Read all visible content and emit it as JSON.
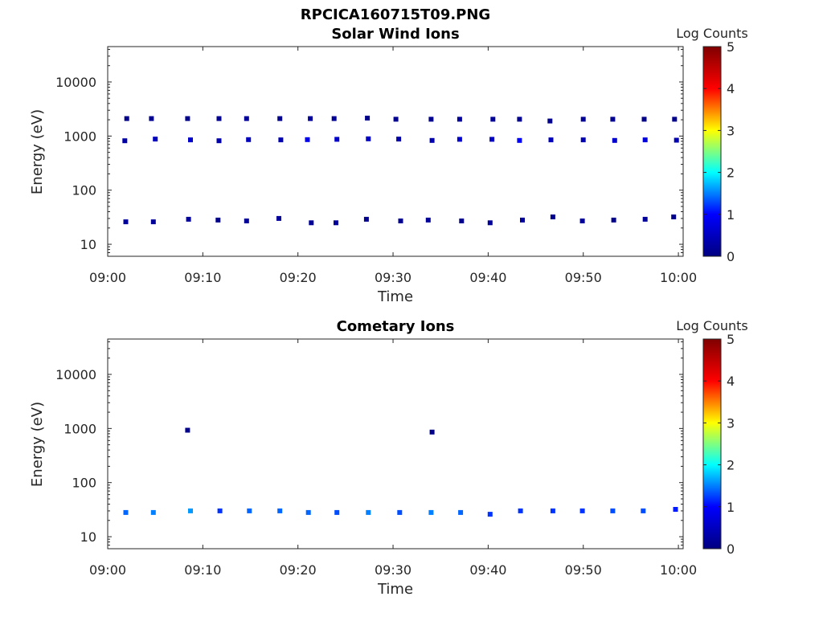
{
  "figure_title": "RPCICA160715T09.PNG",
  "colormap": [
    "#000080",
    "#0000ff",
    "#00ffff",
    "#ffff00",
    "#ff0000",
    "#800000"
  ],
  "chart_data": [
    {
      "type": "heatmap",
      "title": "Solar Wind Ions",
      "xlabel": "Time",
      "ylabel": "Energy (eV)",
      "x_ticks": [
        "09:00",
        "09:10",
        "09:20",
        "09:30",
        "09:40",
        "09:50",
        "10:00"
      ],
      "xlim_minutes": [
        0,
        60.5
      ],
      "y_scale": "log",
      "ylim": [
        6,
        45000
      ],
      "y_ticks": [
        10,
        100,
        1000,
        10000
      ],
      "y_tick_labels": [
        "10",
        "100",
        "1000",
        "10000"
      ],
      "colorbar": {
        "label": "Log Counts",
        "range": [
          0,
          5
        ],
        "ticks": [
          "0",
          "1",
          "2",
          "3",
          "4",
          "5"
        ]
      },
      "z_units": "log10 counts",
      "cells": [
        [
          2.0,
          2100,
          0.1
        ],
        [
          4.6,
          2100,
          0.1
        ],
        [
          8.4,
          2100,
          0.1
        ],
        [
          11.7,
          2100,
          0.1
        ],
        [
          14.6,
          2100,
          0.2
        ],
        [
          18.1,
          2100,
          0.1
        ],
        [
          21.3,
          2100,
          0.2
        ],
        [
          23.8,
          2100,
          0.2
        ],
        [
          27.3,
          2150,
          0.1
        ],
        [
          30.3,
          2050,
          0.1
        ],
        [
          34.0,
          2050,
          0.1
        ],
        [
          37.0,
          2050,
          0.2
        ],
        [
          40.5,
          2050,
          0.2
        ],
        [
          43.3,
          2050,
          0.1
        ],
        [
          46.5,
          1900,
          0.1
        ],
        [
          50.0,
          2050,
          0.2
        ],
        [
          53.1,
          2050,
          0.1
        ],
        [
          56.4,
          2050,
          0.1
        ],
        [
          59.6,
          2050,
          0.1
        ],
        [
          1.8,
          820,
          0.3
        ],
        [
          5.0,
          880,
          0.5
        ],
        [
          8.7,
          850,
          0.6
        ],
        [
          11.7,
          820,
          0.3
        ],
        [
          14.8,
          860,
          0.5
        ],
        [
          18.2,
          850,
          0.4
        ],
        [
          21.0,
          860,
          0.8
        ],
        [
          24.1,
          870,
          0.6
        ],
        [
          27.4,
          890,
          0.5
        ],
        [
          30.6,
          880,
          0.3
        ],
        [
          34.1,
          830,
          0.4
        ],
        [
          37.0,
          870,
          0.6
        ],
        [
          40.4,
          870,
          0.5
        ],
        [
          43.3,
          830,
          0.9
        ],
        [
          46.6,
          850,
          0.5
        ],
        [
          50.0,
          850,
          0.4
        ],
        [
          53.3,
          830,
          0.6
        ],
        [
          56.5,
          850,
          0.7
        ],
        [
          59.8,
          840,
          0.4
        ],
        [
          1.9,
          26,
          0.2
        ],
        [
          4.8,
          26,
          0.2
        ],
        [
          8.5,
          29,
          0.2
        ],
        [
          11.6,
          28,
          0.1
        ],
        [
          14.6,
          27,
          0.2
        ],
        [
          18.0,
          30,
          0.2
        ],
        [
          21.4,
          25,
          0.2
        ],
        [
          24.0,
          25,
          0.2
        ],
        [
          27.2,
          29,
          0.1
        ],
        [
          30.8,
          27,
          0.1
        ],
        [
          33.7,
          28,
          0.2
        ],
        [
          37.2,
          27,
          0.1
        ],
        [
          40.2,
          25,
          0.2
        ],
        [
          43.6,
          28,
          0.2
        ],
        [
          46.8,
          32,
          0.1
        ],
        [
          49.9,
          27,
          0.2
        ],
        [
          53.2,
          28,
          0.1
        ],
        [
          56.5,
          29,
          0.2
        ],
        [
          59.5,
          32,
          0.1
        ]
      ]
    },
    {
      "type": "heatmap",
      "title": "Cometary Ions",
      "xlabel": "Time",
      "ylabel": "Energy (eV)",
      "x_ticks": [
        "09:00",
        "09:10",
        "09:20",
        "09:30",
        "09:40",
        "09:50",
        "10:00"
      ],
      "xlim_minutes": [
        0,
        60.5
      ],
      "y_scale": "log",
      "ylim": [
        6,
        45000
      ],
      "y_ticks": [
        10,
        100,
        1000,
        10000
      ],
      "y_tick_labels": [
        "10",
        "100",
        "1000",
        "10000"
      ],
      "colorbar": {
        "label": "Log Counts",
        "range": [
          0,
          5
        ],
        "ticks": [
          "0",
          "1",
          "2",
          "3",
          "4",
          "5"
        ]
      },
      "z_units": "log10 counts",
      "cells": [
        [
          1.9,
          28,
          1.4
        ],
        [
          4.8,
          28,
          1.5
        ],
        [
          8.7,
          30,
          1.6
        ],
        [
          11.8,
          30,
          1.2
        ],
        [
          14.9,
          30,
          1.4
        ],
        [
          18.1,
          30,
          1.4
        ],
        [
          21.1,
          28,
          1.4
        ],
        [
          24.1,
          28,
          1.3
        ],
        [
          27.4,
          28,
          1.5
        ],
        [
          30.7,
          28,
          1.3
        ],
        [
          34.0,
          28,
          1.5
        ],
        [
          37.1,
          28,
          1.4
        ],
        [
          40.2,
          26,
          1.2
        ],
        [
          43.4,
          30,
          1.2
        ],
        [
          46.8,
          30,
          1.2
        ],
        [
          49.9,
          30,
          1.2
        ],
        [
          53.1,
          30,
          1.3
        ],
        [
          56.3,
          30,
          1.3
        ],
        [
          59.7,
          32,
          1.1
        ],
        [
          8.4,
          930,
          0.1
        ],
        [
          34.1,
          860,
          0.1
        ]
      ]
    }
  ]
}
